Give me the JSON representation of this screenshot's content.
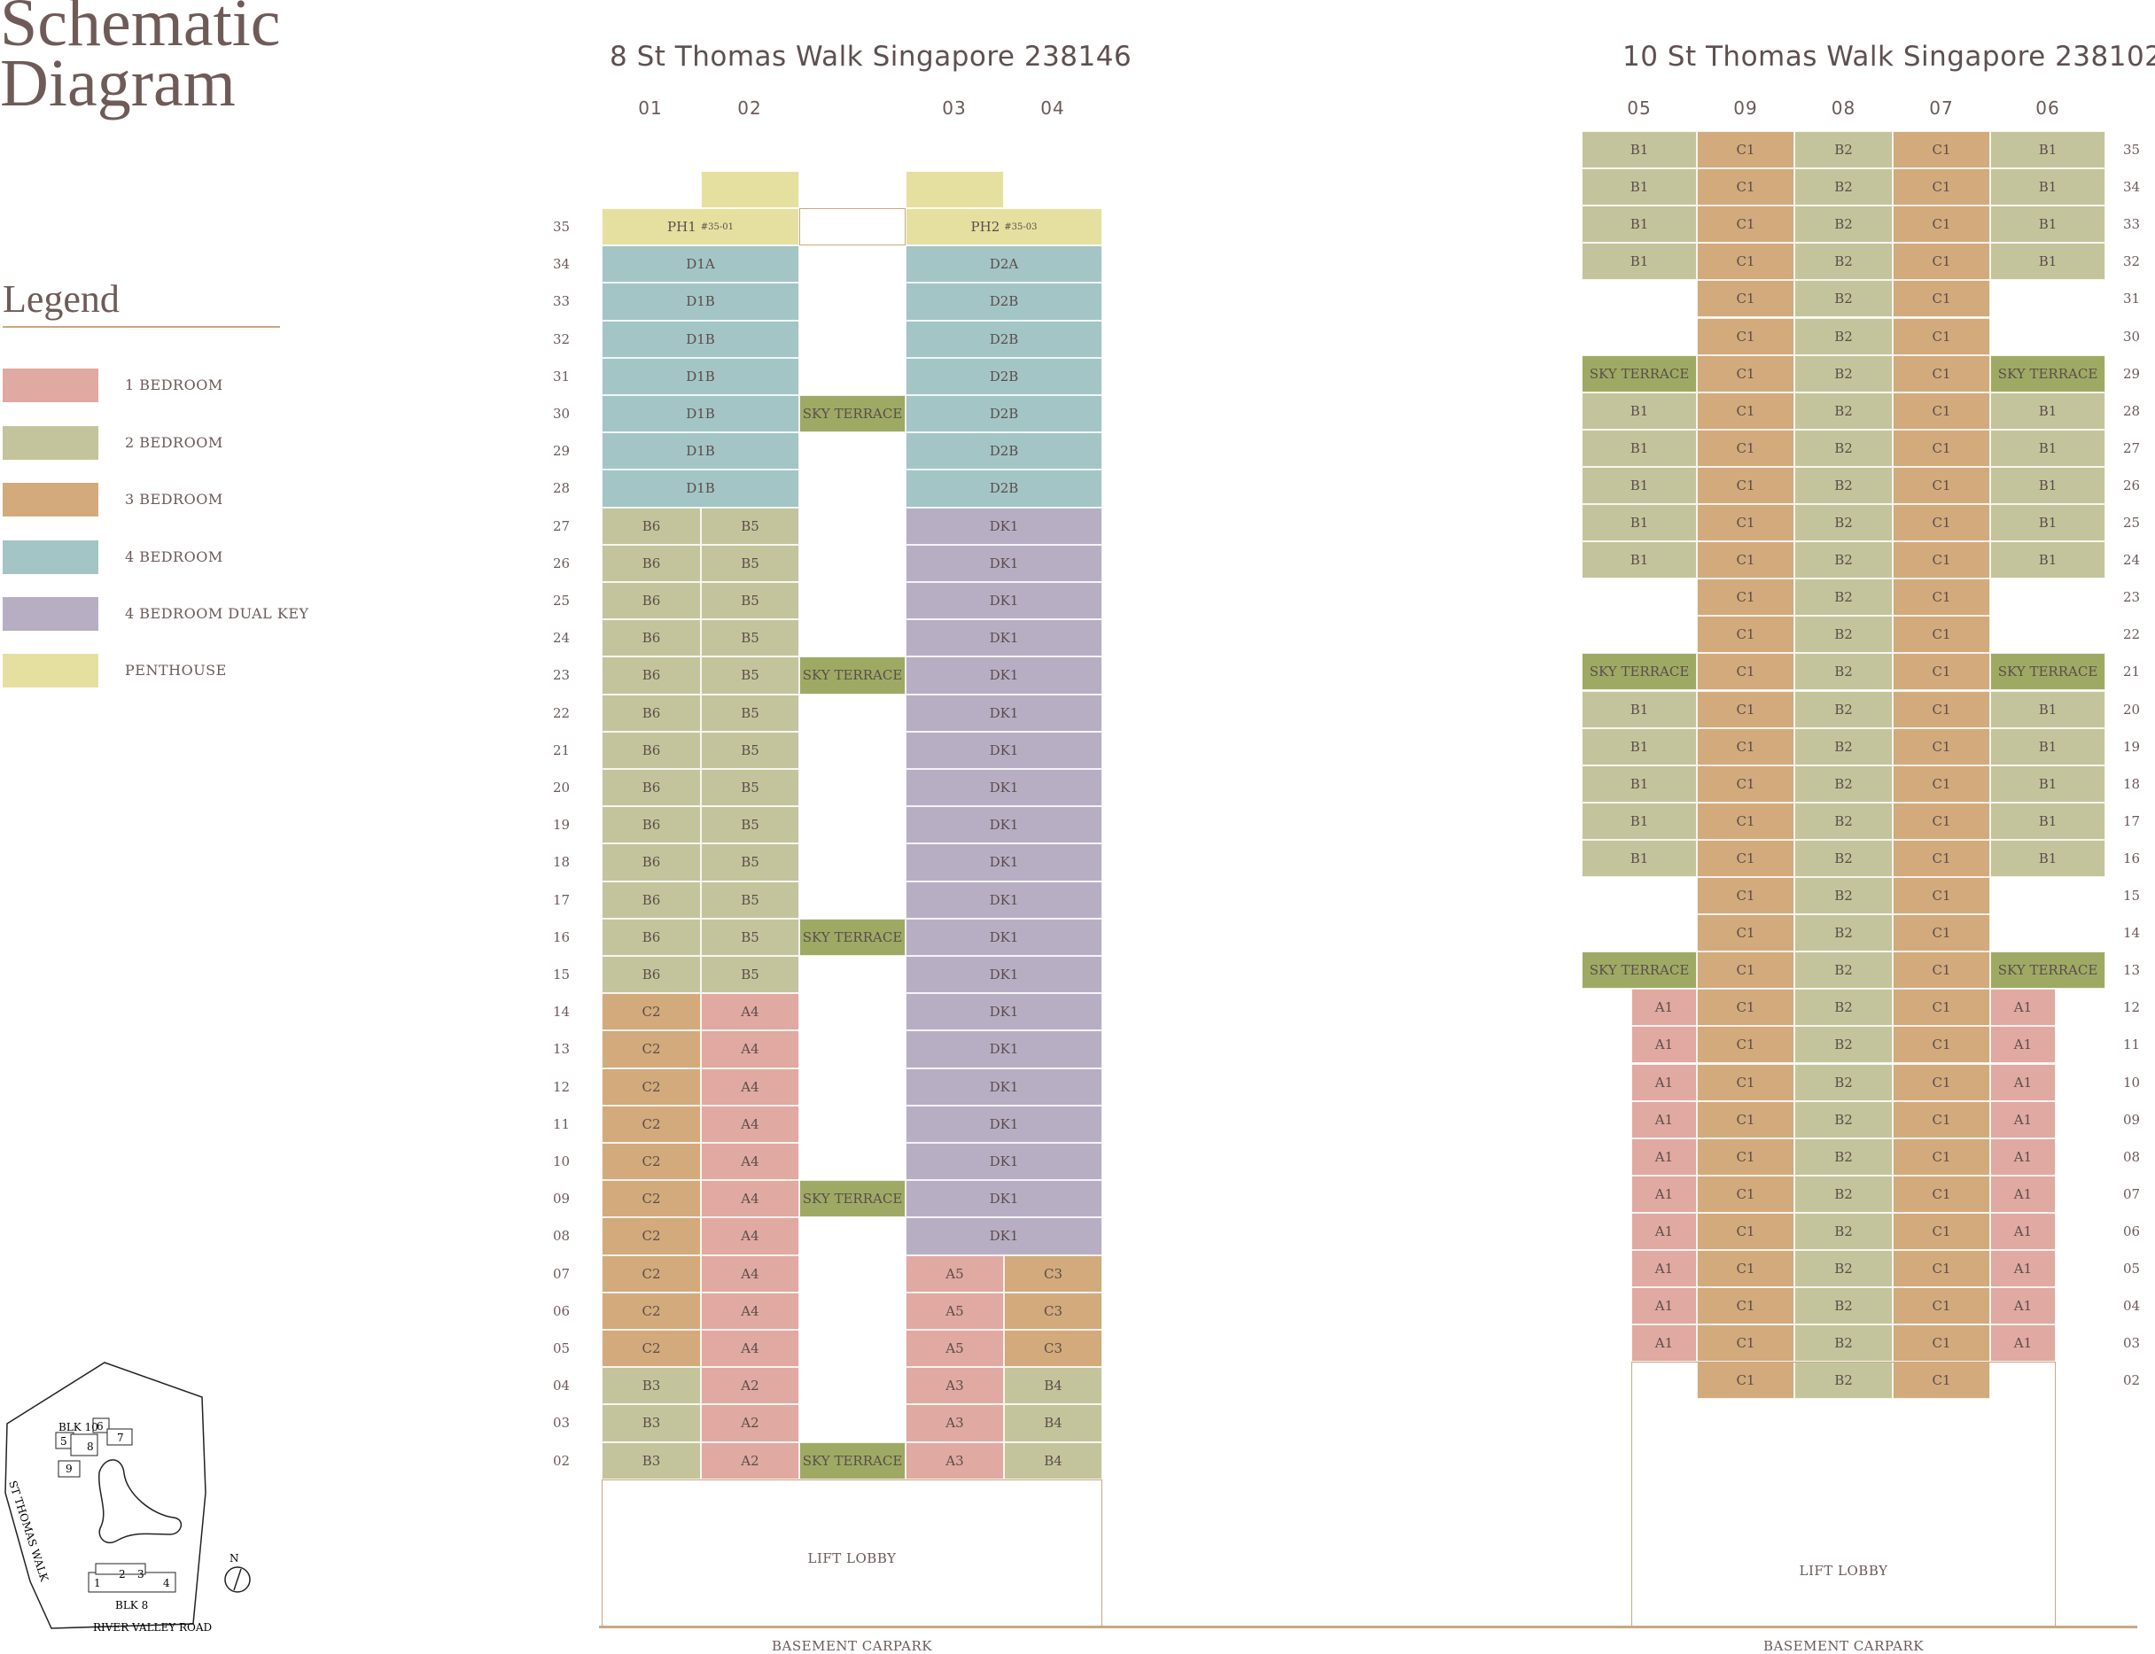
{
  "title": {
    "line1": "Schematic",
    "line2": "Diagram"
  },
  "legend": {
    "title": "Legend",
    "items": [
      {
        "label": "1 BEDROOM",
        "color": "#e0a9a1"
      },
      {
        "label": "2 BEDROOM",
        "color": "#c4c49c"
      },
      {
        "label": "3 BEDROOM",
        "color": "#d2aa7c"
      },
      {
        "label": "4 BEDROOM",
        "color": "#a3c5c6"
      },
      {
        "label": "4 BEDROOM DUAL KEY",
        "color": "#b8aec4"
      },
      {
        "label": "PENTHOUSE",
        "color": "#e6e0a0"
      }
    ]
  },
  "colors": {
    "sky_terrace": "#9eaa64",
    "outline": "#c8a882"
  },
  "blk8": {
    "address": "8 St Thomas Walk Singapore 238146",
    "stacks": [
      "01",
      "02",
      "03",
      "04"
    ],
    "floors": [
      "35",
      "34",
      "33",
      "32",
      "31",
      "30",
      "29",
      "28",
      "27",
      "26",
      "25",
      "24",
      "23",
      "22",
      "21",
      "20",
      "19",
      "18",
      "17",
      "16",
      "15",
      "14",
      "13",
      "12",
      "11",
      "10",
      "09",
      "08",
      "07",
      "06",
      "05",
      "04",
      "03",
      "02"
    ],
    "penthouses": [
      {
        "name": "PH1",
        "unit": "#35-01"
      },
      {
        "name": "PH2",
        "unit": "#35-03"
      }
    ],
    "sky_terrace_label": "SKY TERRACE",
    "lift_lobby": "LIFT LOBBY",
    "basement": "BASEMENT CARPARK"
  },
  "blk10": {
    "address": "10 St Thomas Walk Singapore 238102",
    "stacks": [
      "05",
      "09",
      "08",
      "07",
      "06"
    ],
    "floors": [
      "35",
      "34",
      "33",
      "32",
      "31",
      "30",
      "29",
      "28",
      "27",
      "26",
      "25",
      "24",
      "23",
      "22",
      "21",
      "20",
      "19",
      "18",
      "17",
      "16",
      "15",
      "14",
      "13",
      "12",
      "11",
      "10",
      "09",
      "08",
      "07",
      "06",
      "05",
      "04",
      "03",
      "02"
    ],
    "sky_terrace_label": "SKY TERRACE",
    "lift_lobby": "LIFT LOBBY",
    "basement": "BASEMENT CARPARK"
  },
  "site_plan": {
    "blk10": "BLK 10",
    "blk8": "BLK 8",
    "road1": "ST THOMAS WALK",
    "road2": "RIVER VALLEY ROAD",
    "north": "N",
    "blk10_stacks": [
      "5",
      "6",
      "7",
      "8",
      "9"
    ],
    "blk8_stacks": [
      "1",
      "2",
      "3",
      "4"
    ]
  }
}
